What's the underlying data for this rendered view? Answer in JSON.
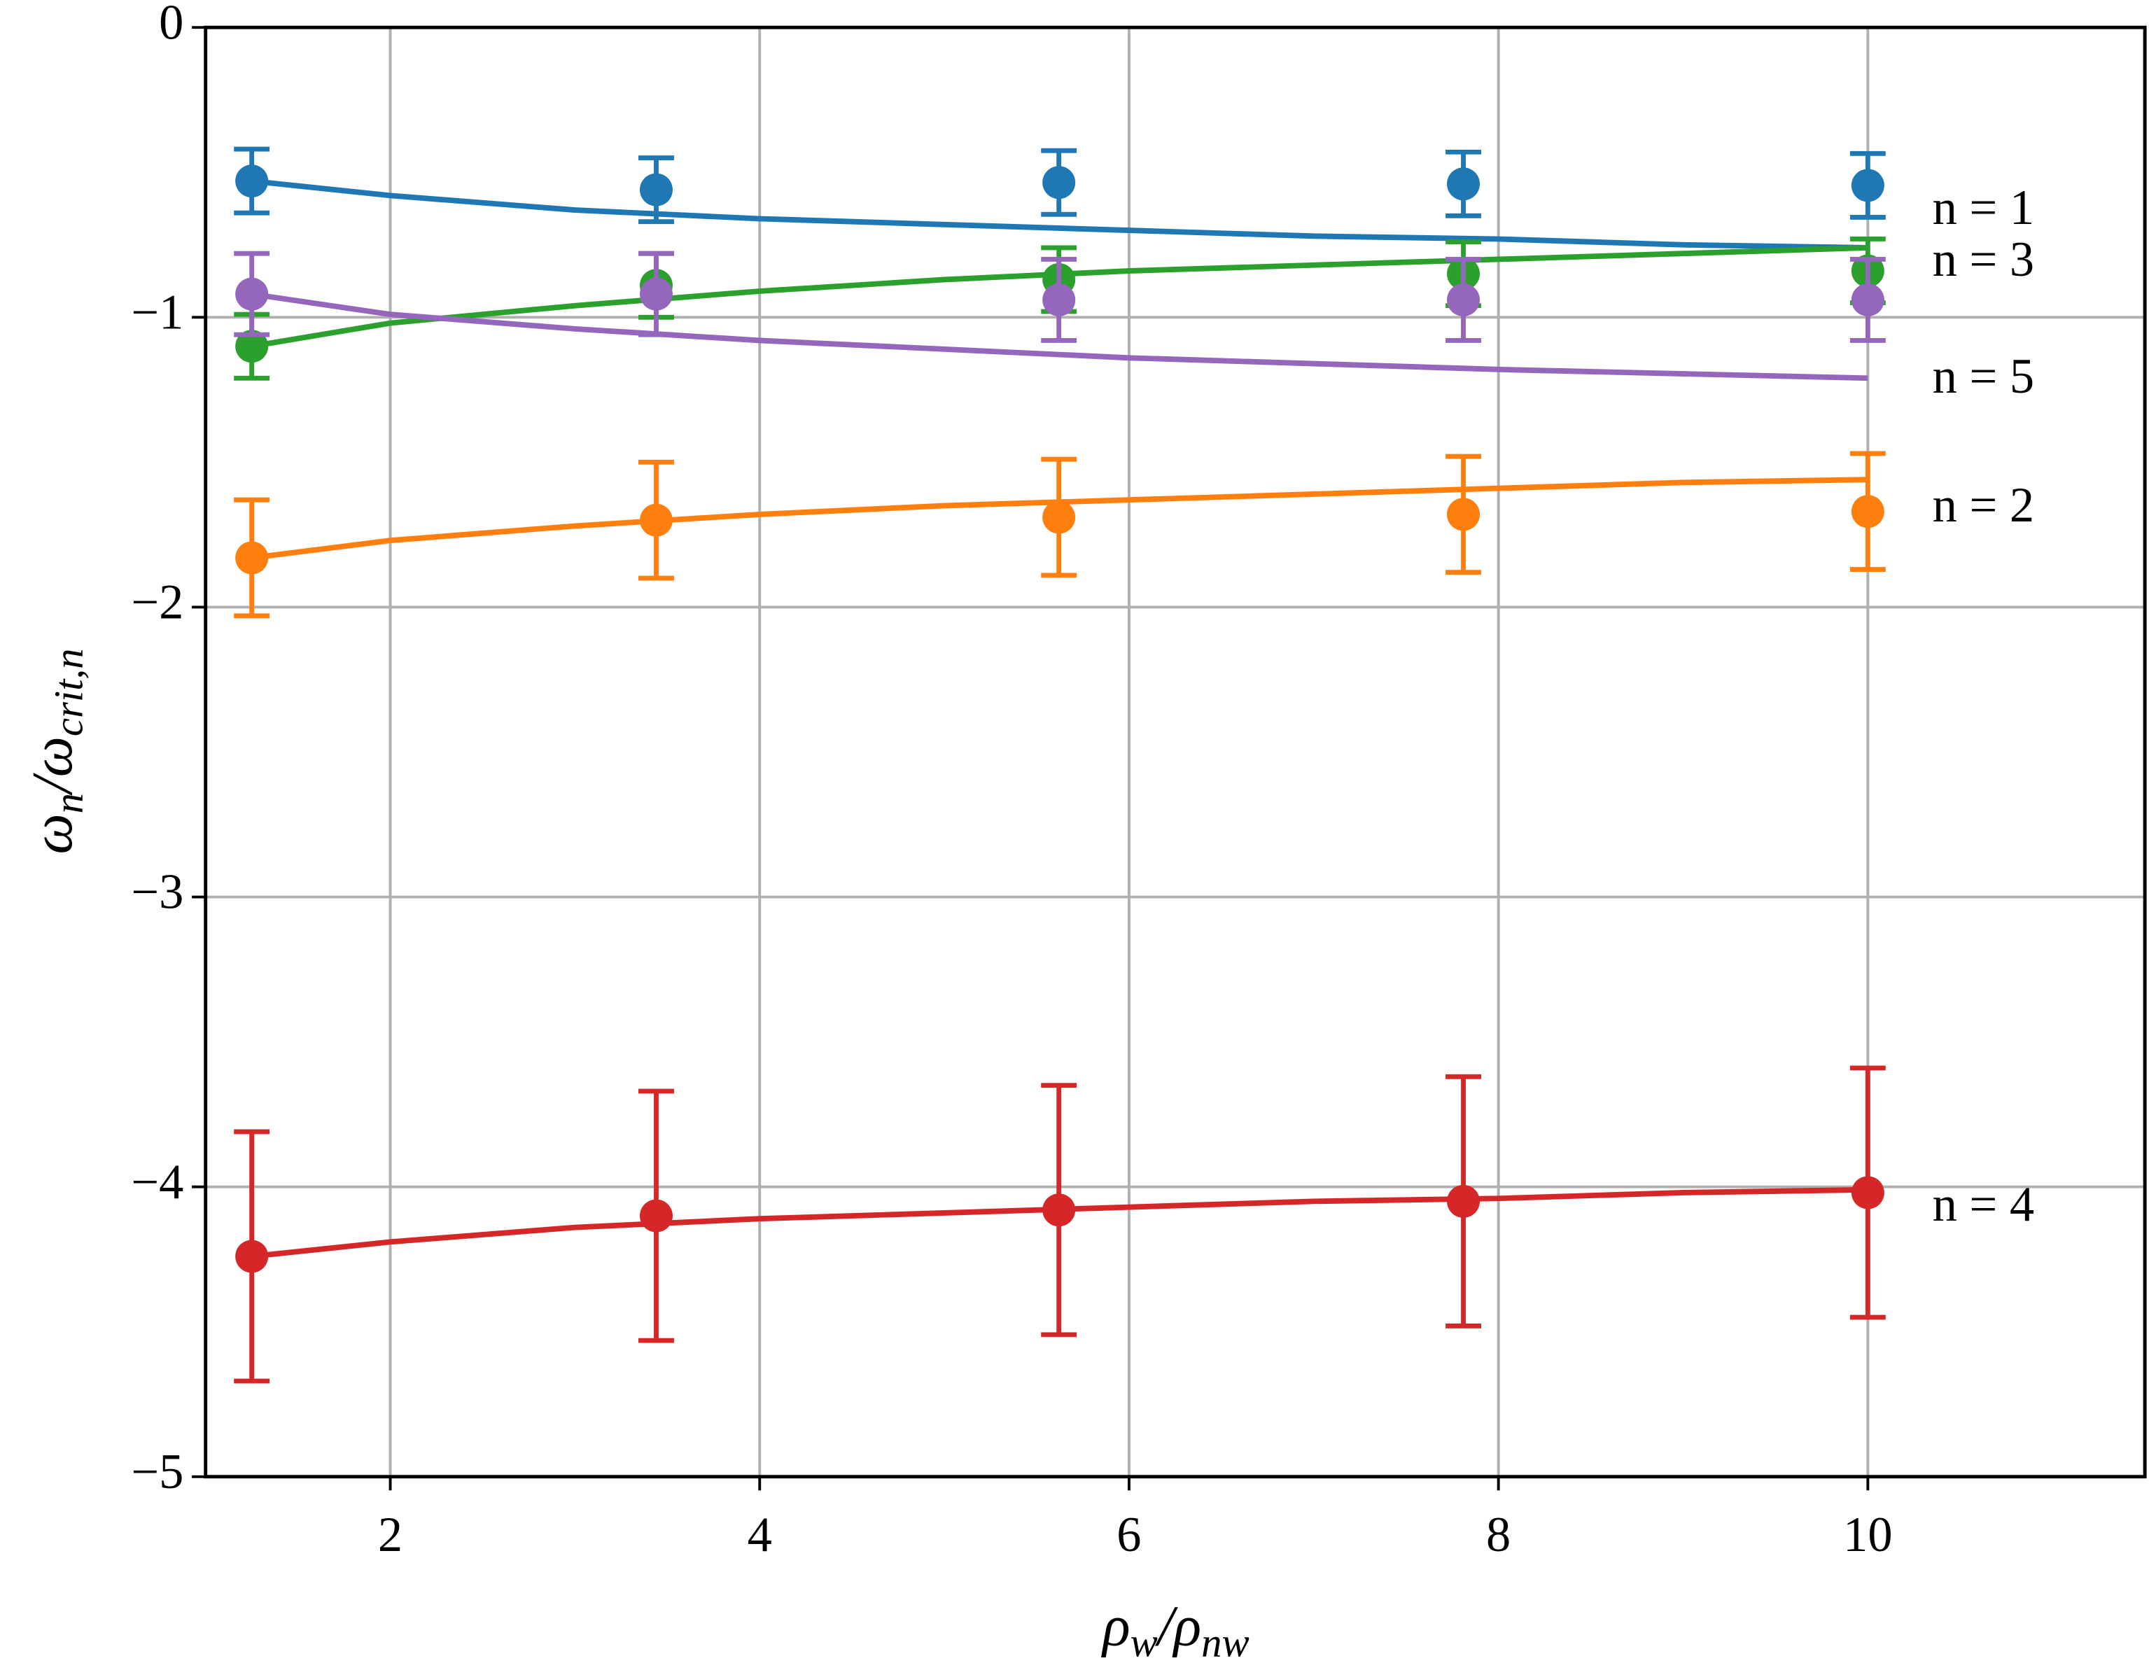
{
  "chart_data": {
    "type": "errorbar",
    "xlabel": [
      "ρ",
      "w",
      "/ρ",
      "nw"
    ],
    "ylabel": [
      "ω",
      "n",
      "/ω",
      "crit,n"
    ],
    "x": [
      1.25,
      3.44,
      5.62,
      7.81,
      10
    ],
    "fit_x": [
      1.25,
      2,
      3,
      4,
      5,
      6,
      7,
      8,
      9,
      10
    ],
    "xlim": [
      1.0,
      11.5
    ],
    "ylim": [
      -5,
      0
    ],
    "xticks": [
      2,
      4,
      6,
      8,
      10
    ],
    "yticks": [
      {
        "value": -5,
        "label": "−5"
      },
      {
        "value": -4,
        "label": "−4"
      },
      {
        "value": -3,
        "label": "−3"
      },
      {
        "value": -2,
        "label": "−2"
      },
      {
        "value": -1,
        "label": "−1"
      },
      0
    ],
    "grid": true,
    "series": [
      {
        "name": "n = 1",
        "color": "#1f77b4",
        "values": [
          -0.53,
          -0.56,
          -0.535,
          -0.54,
          -0.545
        ],
        "errors": [
          0.11,
          0.11,
          0.11,
          0.11,
          0.11
        ],
        "fit": [
          -0.53,
          -0.58,
          -0.63,
          -0.66,
          -0.68,
          -0.7,
          -0.72,
          -0.73,
          -0.75,
          -0.76
        ]
      },
      {
        "name": "n = 2",
        "color": "#ff7f0e",
        "values": [
          -1.83,
          -1.7,
          -1.69,
          -1.68,
          -1.67
        ],
        "errors": [
          0.2,
          0.2,
          0.2,
          0.2,
          0.2
        ],
        "fit": [
          -1.83,
          -1.77,
          -1.72,
          -1.68,
          -1.65,
          -1.63,
          -1.61,
          -1.59,
          -1.57,
          -1.56
        ]
      },
      {
        "name": "n = 3",
        "color": "#2ca02c",
        "values": [
          -1.1,
          -0.89,
          -0.87,
          -0.85,
          -0.84
        ],
        "errors": [
          0.11,
          0.11,
          0.11,
          0.11,
          0.11
        ],
        "fit": [
          -1.1,
          -1.02,
          -0.96,
          -0.91,
          -0.87,
          -0.84,
          -0.82,
          -0.8,
          -0.78,
          -0.76
        ]
      },
      {
        "name": "n = 4",
        "color": "#d62728",
        "values": [
          -4.24,
          -4.1,
          -4.08,
          -4.05,
          -4.02
        ],
        "errors": [
          0.43,
          0.43,
          0.43,
          0.43,
          0.43
        ],
        "fit": [
          -4.24,
          -4.19,
          -4.14,
          -4.11,
          -4.09,
          -4.07,
          -4.05,
          -4.04,
          -4.02,
          -4.01
        ]
      },
      {
        "name": "n = 5",
        "color": "#9467bd",
        "values": [
          -0.92,
          -0.92,
          -0.94,
          -0.94,
          -0.94
        ],
        "errors": [
          0.14,
          0.14,
          0.14,
          0.14,
          0.14
        ],
        "fit": [
          -0.92,
          -0.99,
          -1.04,
          -1.08,
          -1.11,
          -1.14,
          -1.16,
          -1.18,
          -1.195,
          -1.21
        ]
      }
    ]
  }
}
